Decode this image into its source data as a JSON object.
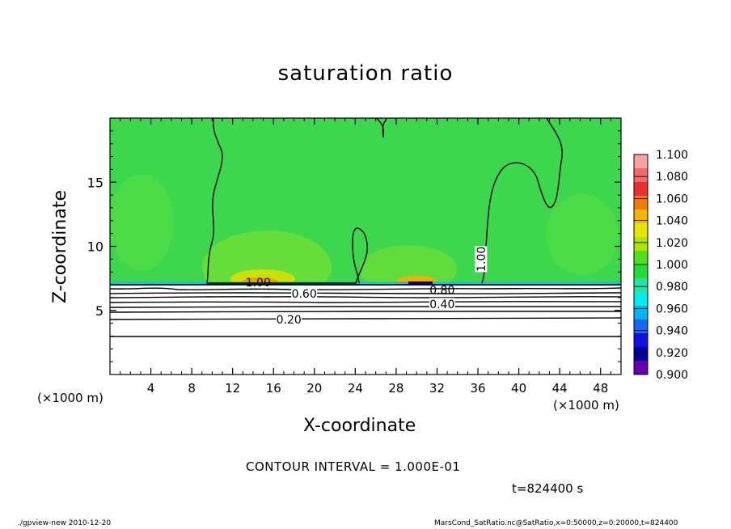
{
  "chart_data": {
    "type": "heatmap",
    "title": "saturation ratio",
    "xlabel": "X-coordinate",
    "ylabel": "Z-coordinate",
    "x_unit": "(×1000 m)",
    "x_unit_left": "(×1000 m)",
    "xlim": [
      0,
      50
    ],
    "ylim": [
      0,
      20
    ],
    "x_ticks": [
      4,
      8,
      12,
      16,
      20,
      24,
      28,
      32,
      36,
      40,
      44,
      48
    ],
    "y_ticks": [
      5,
      10,
      15
    ],
    "contour_interval_text": "CONTOUR INTERVAL = 1.000E-01",
    "time_text": "t=824400 s",
    "contour_labels": [
      {
        "text": "1.00",
        "x": 14.5,
        "z": 7.2
      },
      {
        "text": "0.60",
        "x": 19.0,
        "z": 6.3
      },
      {
        "text": "0.20",
        "x": 17.5,
        "z": 4.3
      },
      {
        "text": "0.80",
        "x": 32.5,
        "z": 6.6
      },
      {
        "text": "0.40",
        "x": 32.5,
        "z": 5.5
      },
      {
        "text": "1.00",
        "x": 36.3,
        "z": 9.0
      }
    ],
    "colorbar": {
      "levels": [
        "1.100",
        "1.080",
        "1.060",
        "1.040",
        "1.020",
        "1.000",
        "0.980",
        "0.960",
        "0.940",
        "0.920",
        "0.900"
      ],
      "colors": [
        "#f8a2a2",
        "#f06a6a",
        "#e83030",
        "#f07a00",
        "#f0b800",
        "#e6e600",
        "#aee600",
        "#4ee020",
        "#22dc3a",
        "#22e6a0",
        "#00eeee",
        "#00b4f0",
        "#1e64f0",
        "#1010e0",
        "#0000a0",
        "#6600aa"
      ]
    },
    "colors": {
      "background_field": "#3ed84a",
      "low_field": "#ffffff",
      "contour": "#000000"
    }
  },
  "footer": {
    "left": "./gpview-new  2010-12-20",
    "right": "MarsCond_SatRatio.nc@SatRatio,x=0:50000,z=0:20000,t=824400"
  }
}
